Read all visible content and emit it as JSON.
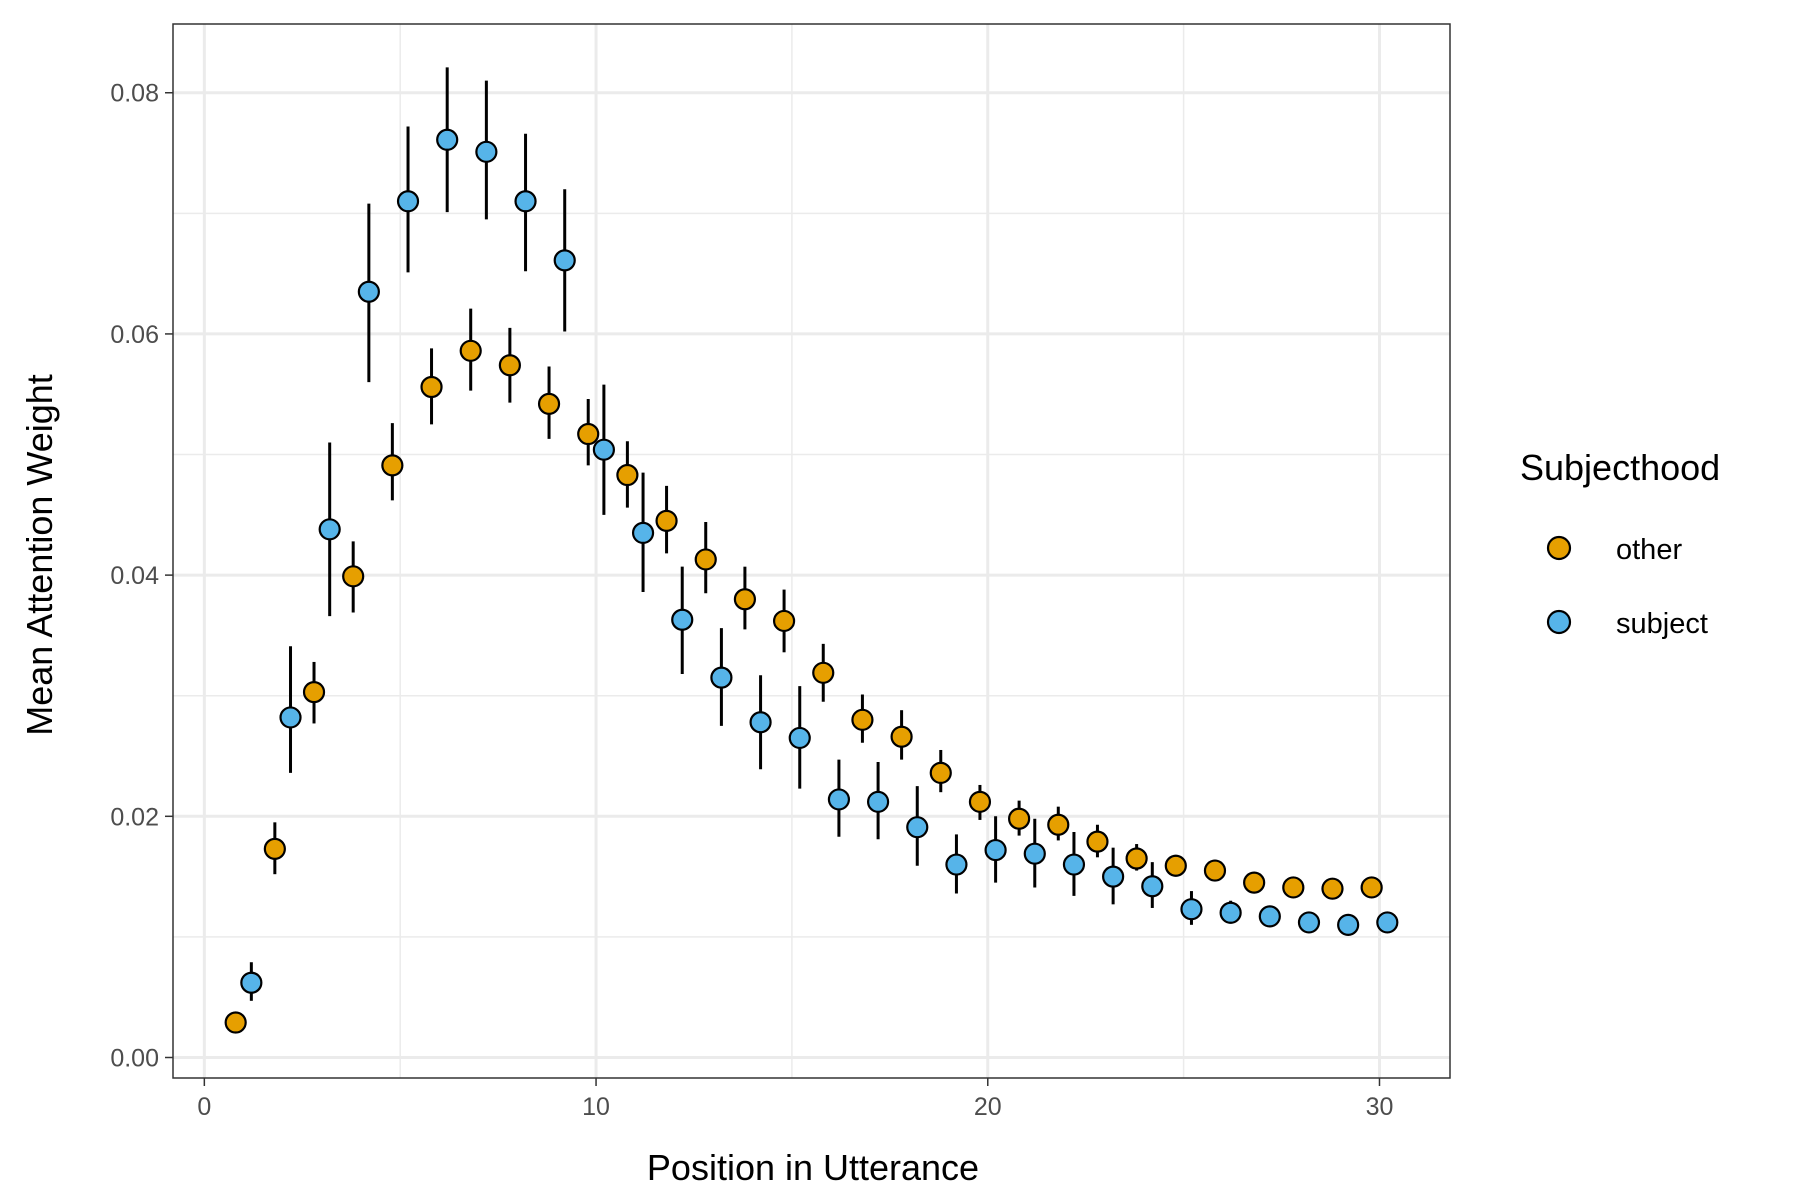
{
  "chart_data": {
    "type": "scatter",
    "title": "",
    "xlabel": "Position in Utterance",
    "ylabel": "Mean Attention Weight",
    "xlim": [
      -0.8,
      31.8
    ],
    "ylim": [
      -0.0017,
      0.0857
    ],
    "x_ticks": [
      0,
      10,
      20,
      30
    ],
    "y_ticks": [
      0.0,
      0.02,
      0.04,
      0.06,
      0.08
    ],
    "x_tick_labels": [
      "0",
      "10",
      "20",
      "30"
    ],
    "y_tick_labels": [
      "0.00",
      "0.02",
      "0.04",
      "0.06",
      "0.08"
    ],
    "grid": true,
    "legend": {
      "title": "Subjecthood",
      "position": "right"
    },
    "colors": {
      "other": "#E69F00",
      "subject": "#56B4E9",
      "errorbar": "#000000",
      "grid": "#ebebeb"
    },
    "series": [
      {
        "name": "other",
        "points": [
          {
            "x": 0.8,
            "y": 0.0029,
            "lo": 0.0029,
            "hi": 0.0029
          },
          {
            "x": 1.8,
            "y": 0.0173,
            "lo": 0.0152,
            "hi": 0.0195
          },
          {
            "x": 2.8,
            "y": 0.0303,
            "lo": 0.0277,
            "hi": 0.0328
          },
          {
            "x": 3.8,
            "y": 0.0399,
            "lo": 0.0369,
            "hi": 0.0428
          },
          {
            "x": 4.8,
            "y": 0.0491,
            "lo": 0.0462,
            "hi": 0.0526
          },
          {
            "x": 5.8,
            "y": 0.0556,
            "lo": 0.0525,
            "hi": 0.0588
          },
          {
            "x": 6.8,
            "y": 0.0586,
            "lo": 0.0553,
            "hi": 0.0621
          },
          {
            "x": 7.8,
            "y": 0.0574,
            "lo": 0.0543,
            "hi": 0.0605
          },
          {
            "x": 8.8,
            "y": 0.0542,
            "lo": 0.0513,
            "hi": 0.0573
          },
          {
            "x": 9.8,
            "y": 0.0517,
            "lo": 0.0491,
            "hi": 0.0546
          },
          {
            "x": 10.8,
            "y": 0.0483,
            "lo": 0.0456,
            "hi": 0.0511
          },
          {
            "x": 11.8,
            "y": 0.0445,
            "lo": 0.0418,
            "hi": 0.0474
          },
          {
            "x": 12.8,
            "y": 0.0413,
            "lo": 0.0385,
            "hi": 0.0444
          },
          {
            "x": 13.8,
            "y": 0.038,
            "lo": 0.0355,
            "hi": 0.0407
          },
          {
            "x": 14.8,
            "y": 0.0362,
            "lo": 0.0336,
            "hi": 0.0388
          },
          {
            "x": 15.8,
            "y": 0.0319,
            "lo": 0.0295,
            "hi": 0.0343
          },
          {
            "x": 16.8,
            "y": 0.028,
            "lo": 0.0261,
            "hi": 0.0301
          },
          {
            "x": 17.8,
            "y": 0.0266,
            "lo": 0.0247,
            "hi": 0.0288
          },
          {
            "x": 18.8,
            "y": 0.0236,
            "lo": 0.022,
            "hi": 0.0255
          },
          {
            "x": 19.8,
            "y": 0.0212,
            "lo": 0.0197,
            "hi": 0.0226
          },
          {
            "x": 20.8,
            "y": 0.0198,
            "lo": 0.0184,
            "hi": 0.0213
          },
          {
            "x": 21.8,
            "y": 0.0193,
            "lo": 0.018,
            "hi": 0.0208
          },
          {
            "x": 22.8,
            "y": 0.0179,
            "lo": 0.0166,
            "hi": 0.0193
          },
          {
            "x": 23.8,
            "y": 0.0165,
            "lo": 0.0155,
            "hi": 0.0177
          },
          {
            "x": 24.8,
            "y": 0.0159,
            "lo": 0.015,
            "hi": 0.0168
          },
          {
            "x": 25.8,
            "y": 0.0155,
            "lo": 0.0146,
            "hi": 0.0164
          },
          {
            "x": 26.8,
            "y": 0.0145,
            "lo": 0.0138,
            "hi": 0.0153
          },
          {
            "x": 27.8,
            "y": 0.0141,
            "lo": 0.0136,
            "hi": 0.0147
          },
          {
            "x": 28.8,
            "y": 0.014,
            "lo": 0.0135,
            "hi": 0.0146
          },
          {
            "x": 29.8,
            "y": 0.0141,
            "lo": 0.0136,
            "hi": 0.0147
          }
        ]
      },
      {
        "name": "subject",
        "points": [
          {
            "x": 1.2,
            "y": 0.0062,
            "lo": 0.0047,
            "hi": 0.0079
          },
          {
            "x": 2.2,
            "y": 0.0282,
            "lo": 0.0236,
            "hi": 0.0341
          },
          {
            "x": 3.2,
            "y": 0.0438,
            "lo": 0.0366,
            "hi": 0.051
          },
          {
            "x": 4.2,
            "y": 0.0635,
            "lo": 0.056,
            "hi": 0.0708
          },
          {
            "x": 5.2,
            "y": 0.071,
            "lo": 0.0651,
            "hi": 0.0772
          },
          {
            "x": 6.2,
            "y": 0.0761,
            "lo": 0.0701,
            "hi": 0.0821
          },
          {
            "x": 7.2,
            "y": 0.0751,
            "lo": 0.0695,
            "hi": 0.081
          },
          {
            "x": 8.2,
            "y": 0.071,
            "lo": 0.0652,
            "hi": 0.0766
          },
          {
            "x": 9.2,
            "y": 0.0661,
            "lo": 0.0602,
            "hi": 0.072
          },
          {
            "x": 10.2,
            "y": 0.0504,
            "lo": 0.045,
            "hi": 0.0558
          },
          {
            "x": 11.2,
            "y": 0.0435,
            "lo": 0.0386,
            "hi": 0.0485
          },
          {
            "x": 12.2,
            "y": 0.0363,
            "lo": 0.0318,
            "hi": 0.0407
          },
          {
            "x": 13.2,
            "y": 0.0315,
            "lo": 0.0275,
            "hi": 0.0356
          },
          {
            "x": 14.2,
            "y": 0.0278,
            "lo": 0.0239,
            "hi": 0.0317
          },
          {
            "x": 15.2,
            "y": 0.0265,
            "lo": 0.0223,
            "hi": 0.0308
          },
          {
            "x": 16.2,
            "y": 0.0214,
            "lo": 0.0183,
            "hi": 0.0247
          },
          {
            "x": 17.2,
            "y": 0.0212,
            "lo": 0.0181,
            "hi": 0.0245
          },
          {
            "x": 18.2,
            "y": 0.0191,
            "lo": 0.0159,
            "hi": 0.0225
          },
          {
            "x": 19.2,
            "y": 0.016,
            "lo": 0.0136,
            "hi": 0.0185
          },
          {
            "x": 20.2,
            "y": 0.0172,
            "lo": 0.0145,
            "hi": 0.02
          },
          {
            "x": 21.2,
            "y": 0.0169,
            "lo": 0.0141,
            "hi": 0.0198
          },
          {
            "x": 22.2,
            "y": 0.016,
            "lo": 0.0134,
            "hi": 0.0187
          },
          {
            "x": 23.2,
            "y": 0.015,
            "lo": 0.0127,
            "hi": 0.0174
          },
          {
            "x": 24.2,
            "y": 0.0142,
            "lo": 0.0124,
            "hi": 0.0162
          },
          {
            "x": 25.2,
            "y": 0.0123,
            "lo": 0.011,
            "hi": 0.0138
          },
          {
            "x": 26.2,
            "y": 0.012,
            "lo": 0.0111,
            "hi": 0.013
          },
          {
            "x": 27.2,
            "y": 0.0117,
            "lo": 0.0111,
            "hi": 0.0123
          },
          {
            "x": 28.2,
            "y": 0.0112,
            "lo": 0.0108,
            "hi": 0.0116
          },
          {
            "x": 29.2,
            "y": 0.011,
            "lo": 0.0106,
            "hi": 0.0114
          },
          {
            "x": 30.2,
            "y": 0.0112,
            "lo": 0.0108,
            "hi": 0.0116
          }
        ]
      }
    ]
  }
}
